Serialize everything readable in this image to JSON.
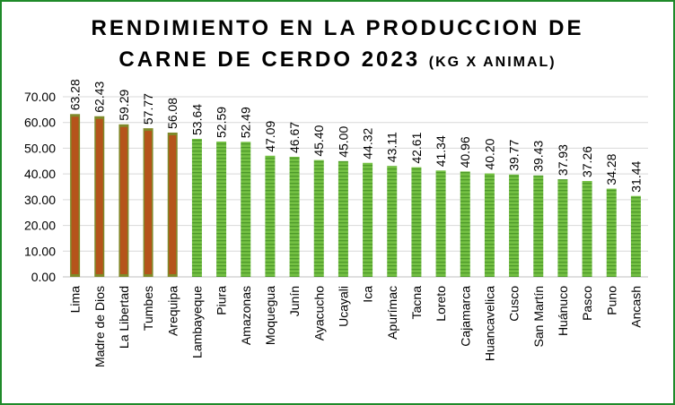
{
  "chart_data": {
    "type": "bar",
    "title_line1": "RENDIMIENTO EN LA PRODUCCION DE",
    "title_line2": "CARNE DE CERDO 2023",
    "title_unit": "(KG X ANIMAL)",
    "xlabel": "",
    "ylabel": "",
    "ylim": [
      0,
      70
    ],
    "yticks": [
      "0.00",
      "10.00",
      "20.00",
      "30.00",
      "40.00",
      "50.00",
      "60.00",
      "70.00"
    ],
    "grid": true,
    "legend": "none",
    "categories": [
      "Lima",
      "Madre de Dios",
      "La Libertad",
      "Tumbes",
      "Arequipa",
      "Lambayeque",
      "Piura",
      "Amazonas",
      "Moquegua",
      "Junín",
      "Ayacucho",
      "Ucayali",
      "Ica",
      "Apurímac",
      "Tacna",
      "Loreto",
      "Cajamarca",
      "Huancavelica",
      "Cusco",
      "San Martín",
      "Huánuco",
      "Pasco",
      "Puno",
      "Ancash"
    ],
    "values": [
      63.28,
      62.43,
      59.29,
      57.77,
      56.08,
      53.64,
      52.59,
      52.49,
      47.09,
      46.67,
      45.4,
      45.0,
      44.32,
      43.11,
      42.61,
      41.34,
      40.96,
      40.2,
      39.77,
      39.43,
      37.93,
      37.26,
      34.28,
      31.44
    ],
    "value_labels": [
      "63.28",
      "62.43",
      "59.29",
      "57.77",
      "56.08",
      "53.64",
      "52.59",
      "52.49",
      "47.09",
      "46.67",
      "45.40",
      "45.00",
      "44.32",
      "43.11",
      "42.61",
      "41.34",
      "40.96",
      "40.20",
      "39.77",
      "39.43",
      "37.93",
      "37.26",
      "34.28",
      "31.44"
    ],
    "highlight_count": 5,
    "colors": {
      "highlight": "#b5541b",
      "highlight_edge": "#7f8a2a",
      "regular": "#74c043",
      "regular_stripe": "#4e9a2a",
      "grid": "#d9d9d9",
      "frame": "#1f8a2a"
    }
  }
}
